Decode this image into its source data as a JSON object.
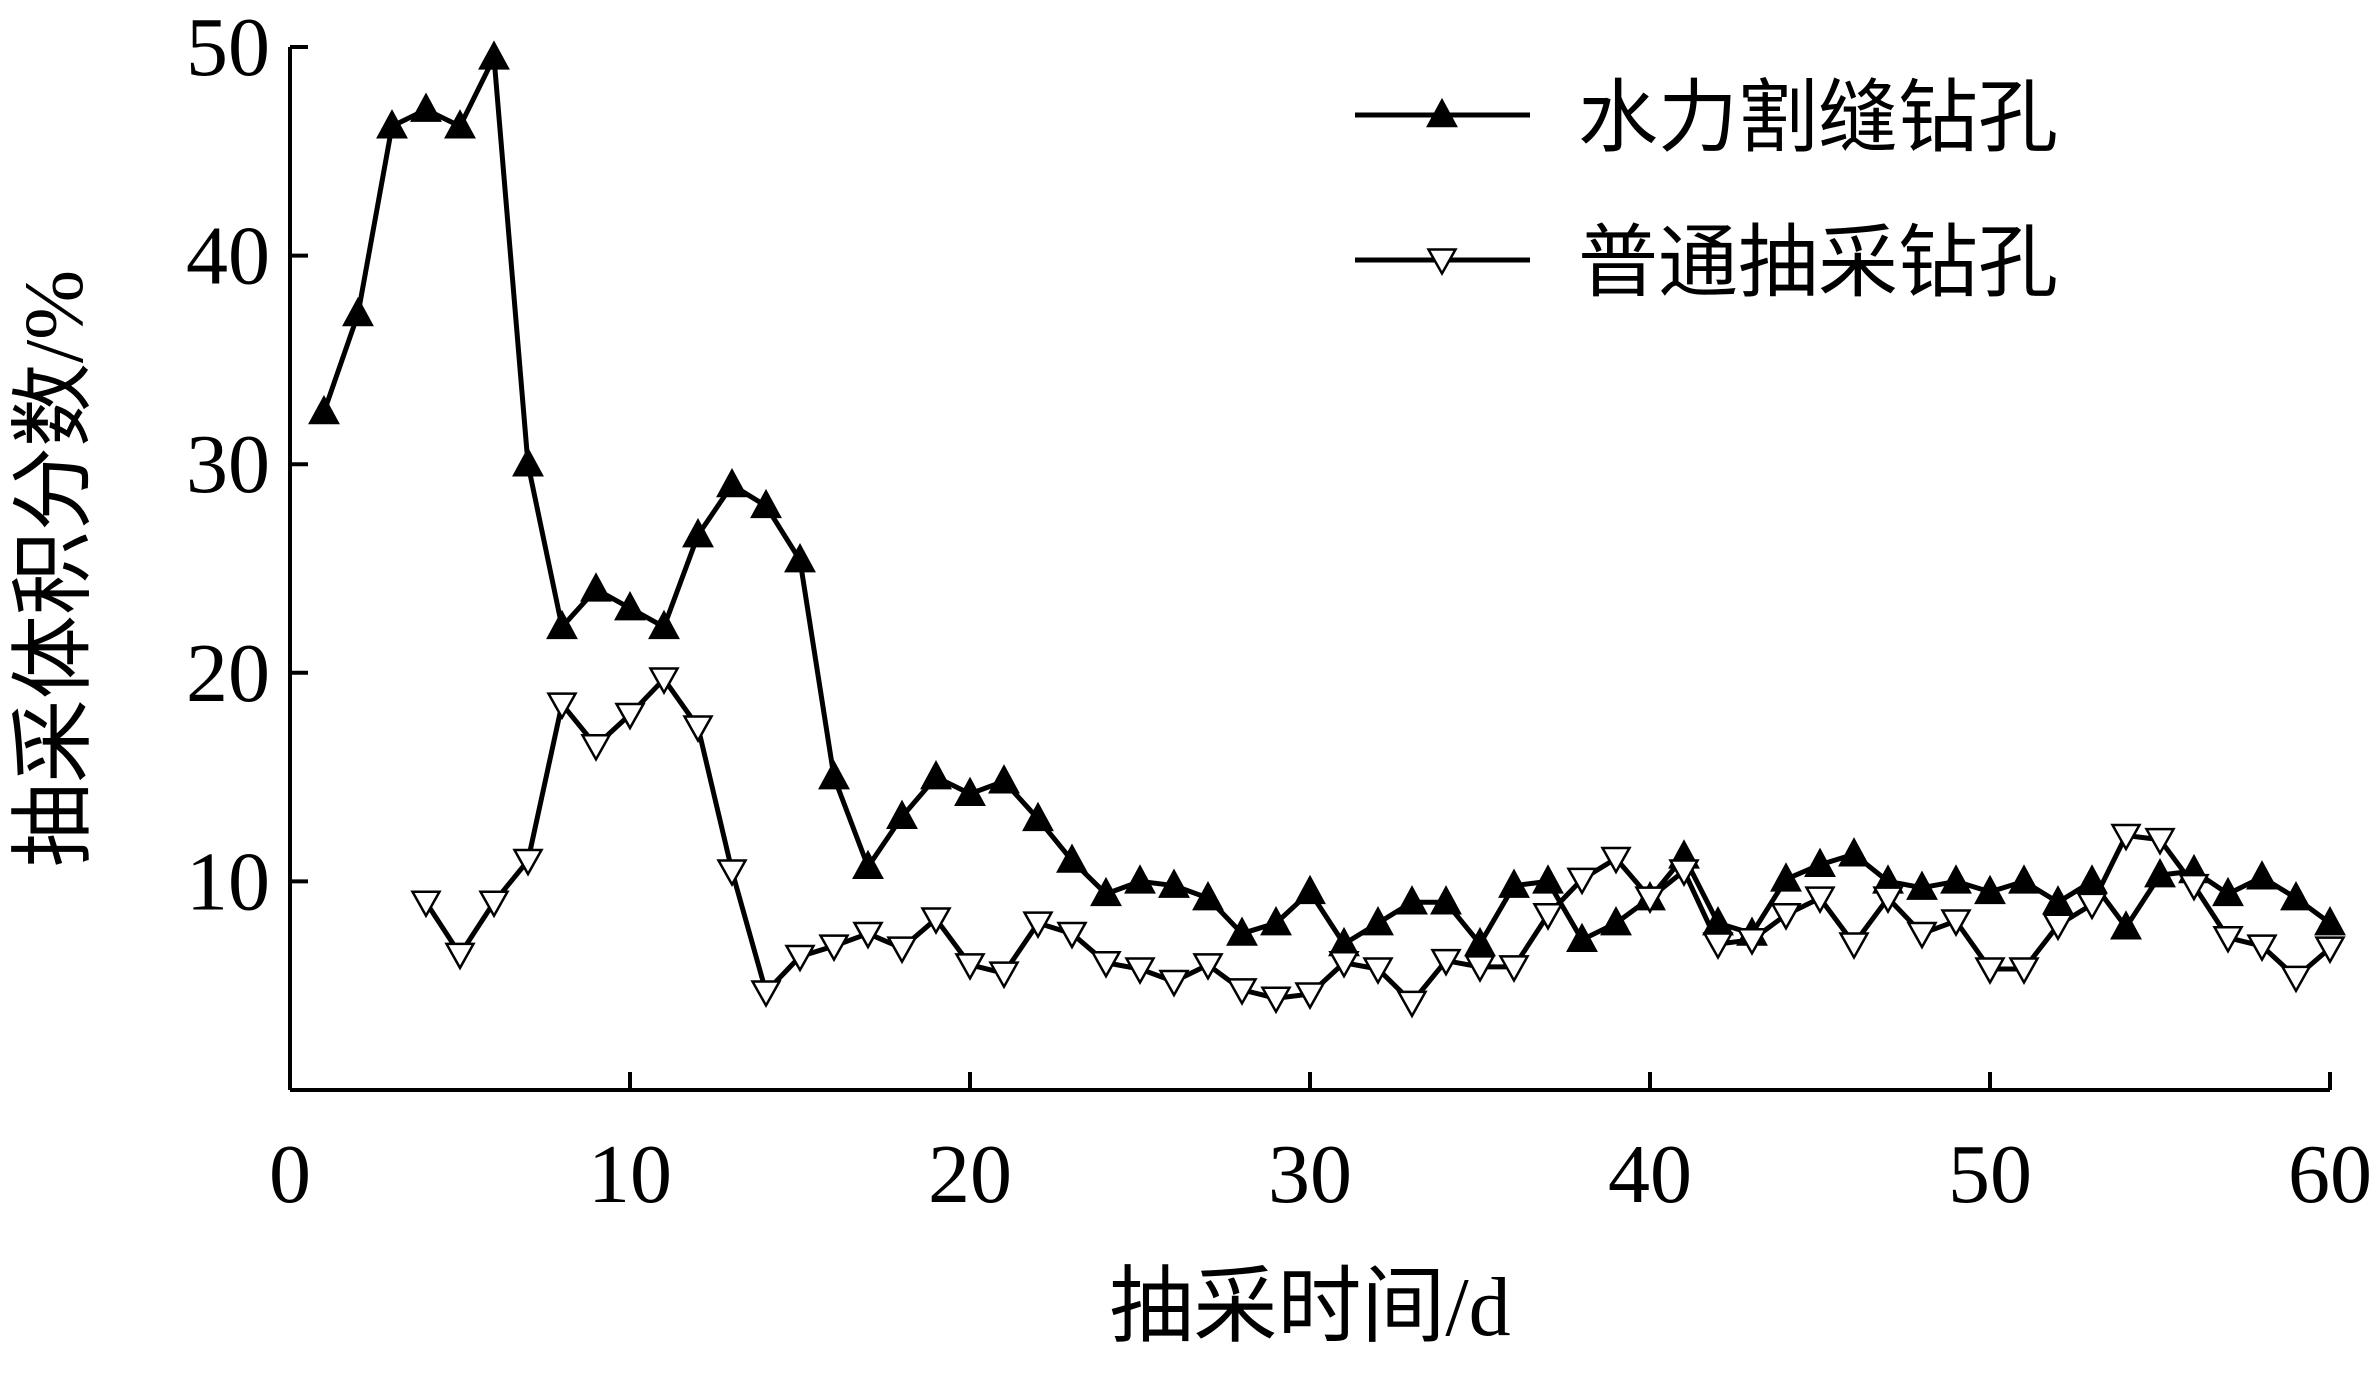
{
  "chart_data": {
    "type": "line",
    "xlabel": "抽采时间/d",
    "ylabel": "抽采体积分数/%",
    "xlim": [
      0,
      60
    ],
    "ylim": [
      0,
      50
    ],
    "x_ticks": [
      "0",
      "10",
      "20",
      "30",
      "40",
      "50",
      "60"
    ],
    "y_ticks": [
      "10",
      "20",
      "30",
      "40",
      "50"
    ],
    "grid": false,
    "legend_position": "top-right",
    "series": [
      {
        "name": "水力割缝钻孔",
        "marker": "filled-triangle-up",
        "color": "#000000",
        "points": [
          [
            1,
            32.5
          ],
          [
            2,
            37.2
          ],
          [
            3,
            46.2
          ],
          [
            4,
            47
          ],
          [
            5,
            46.2
          ],
          [
            6,
            49.5
          ],
          [
            7,
            30
          ],
          [
            8,
            22.2
          ],
          [
            9,
            24
          ],
          [
            10,
            23.1
          ],
          [
            11,
            22.2
          ],
          [
            12,
            26.6
          ],
          [
            13,
            29
          ],
          [
            14,
            28
          ],
          [
            15,
            25.4
          ],
          [
            16,
            15
          ],
          [
            17,
            10.7
          ],
          [
            18,
            13.1
          ],
          [
            19,
            15
          ],
          [
            20,
            14.2
          ],
          [
            21,
            14.8
          ],
          [
            22,
            13
          ],
          [
            23,
            11
          ],
          [
            24,
            9.4
          ],
          [
            25,
            10
          ],
          [
            26,
            9.8
          ],
          [
            27,
            9.2
          ],
          [
            28,
            7.5
          ],
          [
            29,
            8
          ],
          [
            30,
            9.5
          ],
          [
            31,
            7
          ],
          [
            32,
            8
          ],
          [
            33,
            9
          ],
          [
            34,
            9
          ],
          [
            35,
            7
          ],
          [
            36,
            9.8
          ],
          [
            37,
            10
          ],
          [
            38,
            7.2
          ],
          [
            39,
            8
          ],
          [
            40,
            9.2
          ],
          [
            41,
            11.2
          ],
          [
            42,
            8
          ],
          [
            43,
            7.5
          ],
          [
            44,
            10.1
          ],
          [
            45,
            10.8
          ],
          [
            46,
            11.3
          ],
          [
            47,
            10
          ],
          [
            48,
            9.7
          ],
          [
            49,
            10
          ],
          [
            50,
            9.5
          ],
          [
            51,
            10
          ],
          [
            52,
            9
          ],
          [
            53,
            10
          ],
          [
            54,
            7.8
          ],
          [
            55,
            10.3
          ],
          [
            56,
            10.5
          ],
          [
            57,
            9.4
          ],
          [
            58,
            10.2
          ],
          [
            59,
            9.2
          ],
          [
            60,
            8
          ]
        ]
      },
      {
        "name": "普通抽采钻孔",
        "marker": "hollow-triangle-down",
        "color": "#000000",
        "points": [
          [
            4,
            9
          ],
          [
            5,
            6.5
          ],
          [
            6,
            9
          ],
          [
            7,
            11
          ],
          [
            8,
            18.5
          ],
          [
            9,
            16.5
          ],
          [
            10,
            18
          ],
          [
            11,
            19.7
          ],
          [
            12,
            17.4
          ],
          [
            13,
            10.5
          ],
          [
            14,
            4.7
          ],
          [
            15,
            6.4
          ],
          [
            16,
            6.9
          ],
          [
            17,
            7.5
          ],
          [
            18,
            6.8
          ],
          [
            19,
            8.2
          ],
          [
            20,
            6
          ],
          [
            21,
            5.6
          ],
          [
            22,
            8
          ],
          [
            23,
            7.5
          ],
          [
            24,
            6.1
          ],
          [
            25,
            5.8
          ],
          [
            26,
            5.2
          ],
          [
            27,
            6
          ],
          [
            28,
            4.8
          ],
          [
            29,
            4.4
          ],
          [
            30,
            4.6
          ],
          [
            31,
            6.1
          ],
          [
            32,
            5.8
          ],
          [
            33,
            4.2
          ],
          [
            34,
            6.2
          ],
          [
            35,
            5.9
          ],
          [
            36,
            5.9
          ],
          [
            37,
            8.4
          ],
          [
            38,
            10.1
          ],
          [
            39,
            11.1
          ],
          [
            40,
            9.2
          ],
          [
            41,
            10.5
          ],
          [
            42,
            7
          ],
          [
            43,
            7.2
          ],
          [
            44,
            8.4
          ],
          [
            45,
            9.2
          ],
          [
            46,
            7
          ],
          [
            47,
            9.2
          ],
          [
            48,
            7.5
          ],
          [
            49,
            8.1
          ],
          [
            50,
            5.8
          ],
          [
            51,
            5.8
          ],
          [
            52,
            7.9
          ],
          [
            53,
            8.9
          ],
          [
            54,
            12.2
          ],
          [
            55,
            12
          ],
          [
            56,
            9.8
          ],
          [
            57,
            7.3
          ],
          [
            58,
            6.9
          ],
          [
            59,
            5.4
          ],
          [
            60,
            6.8
          ]
        ]
      }
    ]
  }
}
